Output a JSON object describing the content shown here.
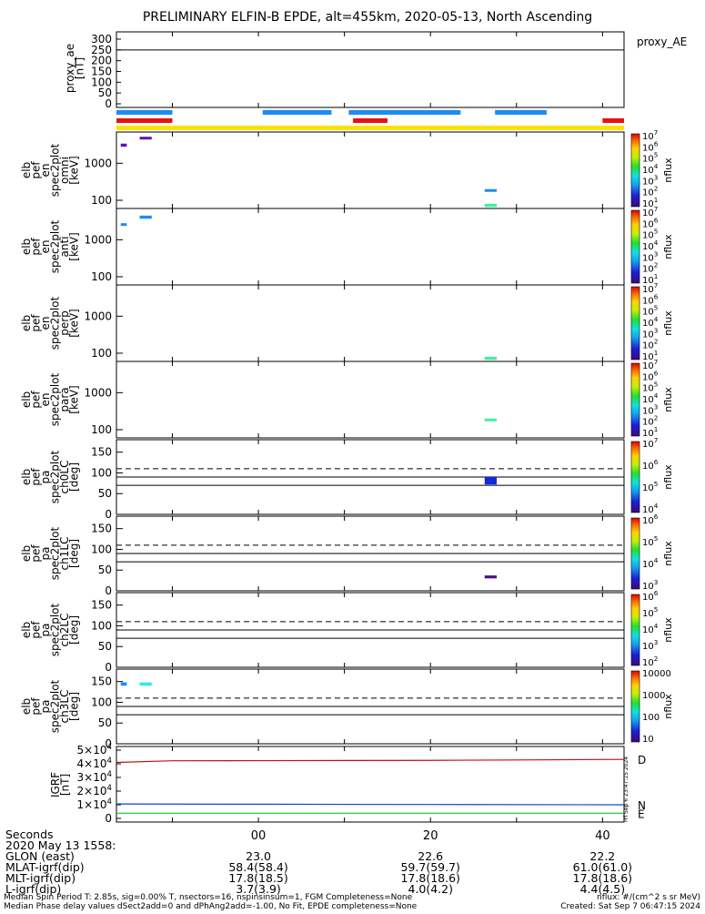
{
  "title": "PRELIMINARY ELFIN-B EPDE, alt=455km, 2020-05-13, North Ascending",
  "proxy": {
    "ylabel": "proxy_ae\n[nT]",
    "legend": "proxy_AE",
    "yticks": [
      "300",
      "250",
      "200",
      "150",
      "100",
      "50",
      "0"
    ],
    "line_value": 250
  },
  "status_bars": {
    "colors": {
      "blue": "#1e8cf0",
      "red": "#e81010",
      "yellow": "#ffe000"
    },
    "blue_x_ranges": [
      [
        -16.5,
        -10
      ],
      [
        0.5,
        8.5
      ],
      [
        10.5,
        23.5
      ],
      [
        27.5,
        33.5
      ]
    ],
    "red_x_ranges": [
      [
        -16.5,
        -10
      ],
      [
        11,
        15
      ],
      [
        40,
        42.5
      ]
    ],
    "yellow_x_ranges": [
      [
        -16.5,
        42.5
      ]
    ]
  },
  "energy_panels": [
    {
      "ylabel": "elb\npef\nen\nspec2plot\nomni\n[keV]",
      "yticks": [
        "1000",
        "100"
      ],
      "cb_ticks": [
        "10^7",
        "10^6",
        "10^5",
        "10^4",
        "10^3",
        "10^2",
        "10^1"
      ],
      "cb_label": "nflux"
    },
    {
      "ylabel": "elb\npef\nen\nspec2plot\nanti\n[keV]",
      "yticks": [
        "1000",
        "100"
      ],
      "cb_ticks": [
        "10^7",
        "10^6",
        "10^5",
        "10^4",
        "10^3",
        "10^2",
        "10^1"
      ],
      "cb_label": "nflux"
    },
    {
      "ylabel": "elb\npef\nen\nspec2plot\nperp\n[keV]",
      "yticks": [
        "1000",
        "100"
      ],
      "cb_ticks": [
        "10^7",
        "10^6",
        "10^5",
        "10^4",
        "10^3",
        "10^2",
        "10^1"
      ],
      "cb_label": "nflux"
    },
    {
      "ylabel": "elb\npef\nen\nspec2plot\npara\n[keV]",
      "yticks": [
        "1000",
        "100"
      ],
      "cb_ticks": [
        "10^7",
        "10^6",
        "10^5",
        "10^4",
        "10^3",
        "10^2",
        "10^1"
      ],
      "cb_label": "nflux"
    }
  ],
  "pa_panels": [
    {
      "ylabel": "elb\npef\npa\nspec2plot\nch0LC\n[deg]",
      "yticks": [
        "150",
        "100",
        "50",
        "0"
      ],
      "cb_ticks": [
        "10^7",
        "10^6",
        "10^5",
        "10^4"
      ],
      "cb_label": "nflux"
    },
    {
      "ylabel": "elb\npef\npa\nspec2plot\nch1LC\n[deg]",
      "yticks": [
        "150",
        "100",
        "50",
        "0"
      ],
      "cb_ticks": [
        "10^6",
        "10^5",
        "10^4",
        "10^3"
      ],
      "cb_label": "nflux"
    },
    {
      "ylabel": "elb\npef\npa\nspec2plot\nch2LC\n[deg]",
      "yticks": [
        "150",
        "100",
        "50",
        "0"
      ],
      "cb_ticks": [
        "10^6",
        "10^5",
        "10^4",
        "10^3",
        "10^2"
      ],
      "cb_label": "nflux"
    },
    {
      "ylabel": "elb\npef\npa\nspec2plot\nch3LC\n[deg]",
      "yticks": [
        "150",
        "100",
        "50",
        "0"
      ],
      "cb_ticks": [
        "10000",
        "1000",
        "100",
        "10"
      ],
      "cb_label": "nflux"
    }
  ],
  "igrf": {
    "ylabel": "IGRF\n[nT]",
    "yticks": [
      "5×10^4",
      "4×10^4",
      "3×10^4",
      "2×10^4",
      "1×10^4",
      "0"
    ],
    "legend": [
      "D",
      "N",
      "E"
    ],
    "side_text": "Fri Sep  6 23:47:15 2024"
  },
  "xaxis": {
    "ticks": [
      "00",
      "20",
      "40"
    ],
    "rows": [
      {
        "label": "Seconds",
        "values": [
          "",
          "",
          ""
        ]
      },
      {
        "label": "2020 May 13 1558:",
        "values": [
          "",
          "",
          ""
        ]
      },
      {
        "label": "GLON (east)",
        "values": [
          "23.0",
          "22.6",
          "22.2"
        ]
      },
      {
        "label": "MLAT-igrf(dip)",
        "values": [
          "58.4(58.4)",
          "59.7(59.7)",
          "61.0(61.0)"
        ]
      },
      {
        "label": "MLT-igrf(dip)",
        "values": [
          "17.8(18.5)",
          "17.8(18.6)",
          "17.8(18.6)"
        ]
      },
      {
        "label": "L-igrf(dip)",
        "values": [
          "3.7(3.9)",
          "4.0(4.2)",
          "4.4(4.5)"
        ]
      }
    ]
  },
  "footer": {
    "line1_left": "Median Spin Period T: 2.85s, sig=0.00% T, nsectors=16, nspinsinsum=1, FGM Completeness=None",
    "line1_right": "nflux: #/(cm^2 s sr MeV)",
    "line2_left": "Median Phase delay values dSect2add=0 and dPhAng2add=-1.00, No Fit, EPDE completeness=None",
    "line2_right": "Created: Sat Sep  7 06:47:15 2024"
  },
  "chart_data": {
    "type": "heatmap",
    "x_range": [
      -16.5,
      42.5
    ],
    "energy_range_keV": [
      60,
      7000
    ],
    "pa_range_deg": [
      0,
      180
    ],
    "pa_lines": {
      "solid": [
        70,
        90
      ],
      "dashed": 110
    },
    "energy_blocks": [
      [
        {
          "x0": -16,
          "x1": -15.3,
          "e0": 2800,
          "e1": 3400,
          "color": "#5a14b4"
        },
        {
          "x0": -13.8,
          "x1": -12.4,
          "e0": 4400,
          "e1": 5200,
          "color": "#5a14b4"
        },
        {
          "x0": 26.3,
          "x1": 27.7,
          "e0": 170,
          "e1": 200,
          "color": "#1e8cf0"
        },
        {
          "x0": 26.3,
          "x1": 27.7,
          "e0": 66,
          "e1": 80,
          "color": "#40f0a0"
        }
      ],
      [
        {
          "x0": -16,
          "x1": -15.3,
          "e0": 2400,
          "e1": 2800,
          "color": "#1e8cf0"
        },
        {
          "x0": -13.8,
          "x1": -12.4,
          "e0": 3700,
          "e1": 4500,
          "color": "#1e8cf0"
        }
      ],
      [
        {
          "x0": 26.3,
          "x1": 27.7,
          "e0": 66,
          "e1": 80,
          "color": "#40f0a0"
        }
      ],
      [
        {
          "x0": 26.3,
          "x1": 27.7,
          "e0": 170,
          "e1": 200,
          "color": "#40f0a0"
        }
      ]
    ],
    "pa_blocks": [
      [
        {
          "x0": 26.3,
          "x1": 27.7,
          "p0": 72,
          "p1": 90,
          "color": "#1428dc"
        }
      ],
      [
        {
          "x0": 26.3,
          "x1": 27.7,
          "p0": 30,
          "p1": 37,
          "color": "#4a0f88"
        }
      ],
      [],
      [
        {
          "x0": -16,
          "x1": -15.3,
          "p0": 140,
          "p1": 148,
          "color": "#1e8cf0"
        },
        {
          "x0": -13.8,
          "x1": -12.4,
          "p0": 140,
          "p1": 148,
          "color": "#30e8f8"
        }
      ]
    ],
    "igrf_series": [
      {
        "name": "D",
        "color": "#c01010",
        "x": [
          -16.5,
          -10,
          0,
          10,
          20,
          30,
          42.5
        ],
        "y": [
          41000,
          42200,
          42300,
          42400,
          42500,
          42800,
          43200
        ]
      },
      {
        "name": "N",
        "color": "#1040e0",
        "x": [
          -16.5,
          0,
          20,
          42.5
        ],
        "y": [
          10600,
          10400,
          10200,
          10000
        ]
      },
      {
        "name": "E",
        "color": "#10c030",
        "x": [
          -16.5,
          42.5
        ],
        "y": [
          3800,
          3800
        ]
      }
    ],
    "proxy_ae_series": [
      {
        "x": [
          -16.5,
          42.5
        ],
        "y": [
          250,
          250
        ]
      }
    ]
  }
}
